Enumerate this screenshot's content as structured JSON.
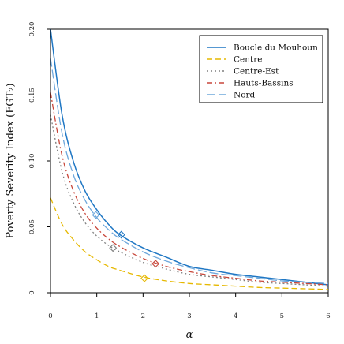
{
  "chart_data": {
    "type": "line",
    "title": "",
    "xlabel": "α",
    "ylabel": "Poverty Severity Index (FGT₂)",
    "xlim": [
      0,
      6
    ],
    "ylim": [
      0,
      0.2
    ],
    "x_ticks": [
      0,
      1,
      2,
      3,
      4,
      5,
      6
    ],
    "y_ticks": [
      0,
      0.05,
      0.1,
      0.15,
      0.2
    ],
    "y_tick_labels": [
      "0",
      "0.05",
      "0.10",
      "0.15",
      "0.20"
    ],
    "grid": false,
    "legend_position": "top-right",
    "series": [
      {
        "name": "Boucle du Mouhoun",
        "color": "#1f77c4",
        "dash": "solid",
        "x": [
          0,
          0.25,
          0.5,
          0.75,
          1,
          1.25,
          1.5,
          2,
          2.5,
          3,
          3.5,
          4,
          4.5,
          5,
          5.5,
          6
        ],
        "y": [
          0.2,
          0.135,
          0.099,
          0.077,
          0.063,
          0.052,
          0.044,
          0.034,
          0.027,
          0.02,
          0.017,
          0.014,
          0.012,
          0.01,
          0.008,
          0.006
        ],
        "marker": {
          "x": 1.53,
          "y": 0.044
        }
      },
      {
        "name": "Centre",
        "color": "#e6b800",
        "dash": "dashed",
        "x": [
          0,
          0.25,
          0.5,
          0.75,
          1,
          1.25,
          1.5,
          2,
          2.5,
          3,
          3.5,
          4,
          4.5,
          5,
          5.5,
          6
        ],
        "y": [
          0.072,
          0.052,
          0.04,
          0.031,
          0.025,
          0.02,
          0.017,
          0.012,
          0.009,
          0.007,
          0.006,
          0.005,
          0.004,
          0.0035,
          0.003,
          0.0025
        ],
        "marker": {
          "x": 2.03,
          "y": 0.011
        }
      },
      {
        "name": "Centre-Est",
        "color": "#7f7f7f",
        "dash": "dotted",
        "x": [
          0,
          0.25,
          0.5,
          0.75,
          1,
          1.25,
          1.5,
          2,
          2.5,
          3,
          3.5,
          4,
          4.5,
          5,
          5.5,
          6
        ],
        "y": [
          0.135,
          0.092,
          0.068,
          0.053,
          0.043,
          0.036,
          0.031,
          0.023,
          0.018,
          0.014,
          0.012,
          0.01,
          0.008,
          0.007,
          0.006,
          0.005
        ],
        "marker": {
          "x": 1.35,
          "y": 0.034
        }
      },
      {
        "name": "Hauts-Bassins",
        "color": "#c8473b",
        "dash": "dashdot",
        "x": [
          0,
          0.25,
          0.5,
          0.75,
          1,
          1.25,
          1.5,
          2,
          2.5,
          3,
          3.5,
          4,
          4.5,
          5,
          5.5,
          6
        ],
        "y": [
          0.152,
          0.104,
          0.077,
          0.06,
          0.049,
          0.041,
          0.035,
          0.026,
          0.02,
          0.016,
          0.013,
          0.011,
          0.009,
          0.008,
          0.007,
          0.006
        ],
        "marker": {
          "x": 2.27,
          "y": 0.022
        }
      },
      {
        "name": "Nord",
        "color": "#6fa8dc",
        "dash": "longdash",
        "x": [
          0,
          0.25,
          0.5,
          0.75,
          1,
          1.25,
          1.5,
          2,
          2.5,
          3,
          3.5,
          4,
          4.5,
          5,
          5.5,
          6
        ],
        "y": [
          0.178,
          0.121,
          0.089,
          0.07,
          0.057,
          0.048,
          0.041,
          0.031,
          0.024,
          0.019,
          0.015,
          0.013,
          0.011,
          0.009,
          0.008,
          0.007
        ],
        "marker": {
          "x": 0.98,
          "y": 0.059
        }
      }
    ]
  }
}
